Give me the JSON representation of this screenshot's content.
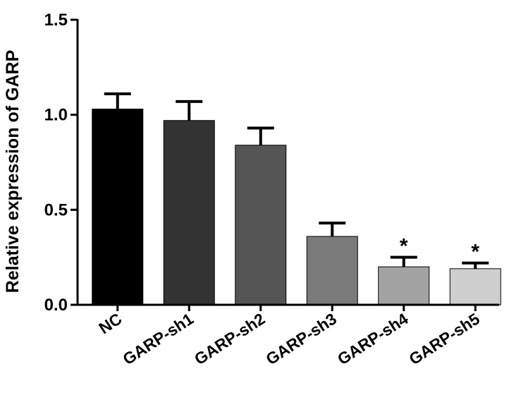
{
  "chart_data": {
    "type": "bar",
    "title": "",
    "xlabel": "",
    "ylabel": "Relative expression  of GARP",
    "ylim": [
      0,
      1.5
    ],
    "yticks": [
      0.0,
      0.5,
      1.0,
      1.5
    ],
    "ytick_labels": [
      "0.0",
      "0.5",
      "1.0",
      "1.5"
    ],
    "grid": false,
    "legend": "none",
    "categories": [
      "NC",
      "GARP-sh1",
      "GARP-sh2",
      "GARP-sh3",
      "GARP-sh4",
      "GARP-sh5"
    ],
    "values": [
      1.03,
      0.97,
      0.84,
      0.36,
      0.2,
      0.19
    ],
    "error_upper": [
      0.08,
      0.1,
      0.09,
      0.07,
      0.05,
      0.03
    ],
    "significance": [
      "",
      "",
      "",
      "",
      "*",
      "*"
    ],
    "bar_colors": [
      "#000000",
      "#333333",
      "#555555",
      "#7a7a7a",
      "#a3a3a3",
      "#cfcfcf"
    ]
  }
}
